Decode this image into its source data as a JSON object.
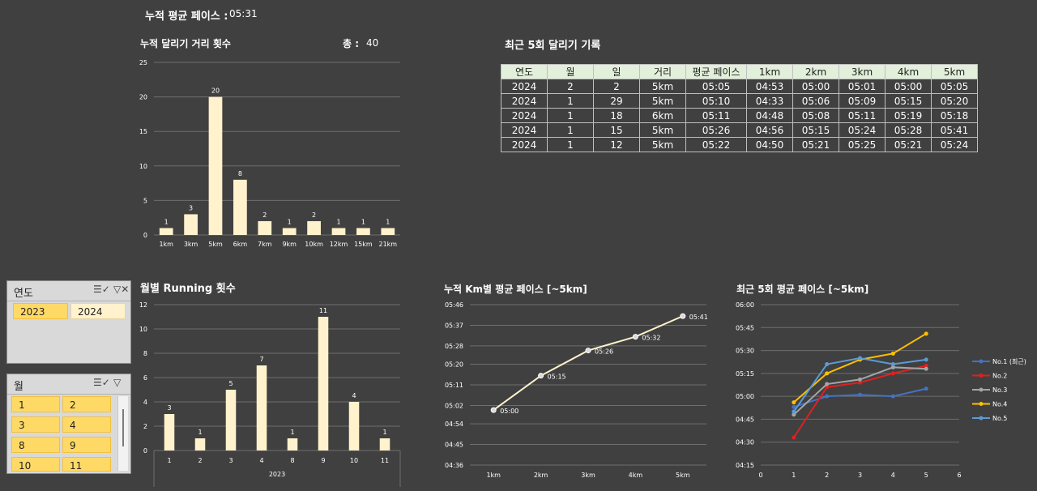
{
  "summary": {
    "pace_label": "누적 평균 페이스 :",
    "pace_value": "05:31"
  },
  "distance_chart": {
    "title": "누적 달리기 거리 횟수",
    "total_label": "총 :",
    "total_value": "40"
  },
  "recent_table": {
    "title": "최근 5회 달리기 기록",
    "headers": [
      "연도",
      "월",
      "일",
      "거리",
      "평균 페이스",
      "1km",
      "2km",
      "3km",
      "4km",
      "5km"
    ],
    "rows": [
      [
        "2024",
        "2",
        "2",
        "5km",
        "05:05",
        "04:53",
        "05:00",
        "05:01",
        "05:00",
        "05:05"
      ],
      [
        "2024",
        "1",
        "29",
        "5km",
        "05:10",
        "04:33",
        "05:06",
        "05:09",
        "05:15",
        "05:20"
      ],
      [
        "2024",
        "1",
        "18",
        "6km",
        "05:11",
        "04:48",
        "05:08",
        "05:11",
        "05:19",
        "05:18"
      ],
      [
        "2024",
        "1",
        "15",
        "5km",
        "05:26",
        "04:56",
        "05:15",
        "05:24",
        "05:28",
        "05:41"
      ],
      [
        "2024",
        "1",
        "12",
        "5km",
        "05:22",
        "04:50",
        "05:21",
        "05:25",
        "05:21",
        "05:24"
      ]
    ]
  },
  "monthly_chart": {
    "title": "월별 Running 횟수"
  },
  "km_pace_chart": {
    "title": "누적 Km별 평균 페이스 [~5km]"
  },
  "recent_pace_chart": {
    "title": "최근 5회 평균 페이스 [~5km]"
  },
  "slicer_year": {
    "title": "연도",
    "items": [
      {
        "label": "2023",
        "selected": true
      },
      {
        "label": "2024",
        "selected": false
      }
    ]
  },
  "slicer_month": {
    "title": "월",
    "items": [
      {
        "label": "1",
        "selected": true
      },
      {
        "label": "2",
        "selected": true
      },
      {
        "label": "3",
        "selected": true
      },
      {
        "label": "4",
        "selected": true
      },
      {
        "label": "8",
        "selected": true
      },
      {
        "label": "9",
        "selected": true
      },
      {
        "label": "10",
        "selected": true
      },
      {
        "label": "11",
        "selected": true
      }
    ]
  },
  "colors": {
    "bar": "#fff2cc",
    "line": "#fff2cc",
    "grid": "#6e6e6e",
    "selected": "#ffd966"
  },
  "chart_data": [
    {
      "type": "bar",
      "title": "누적 달리기 거리 횟수",
      "categories": [
        "1km",
        "3km",
        "5km",
        "6km",
        "7km",
        "9km",
        "10km",
        "12km",
        "15km",
        "21km"
      ],
      "values": [
        1,
        3,
        20,
        8,
        2,
        1,
        2,
        1,
        1,
        1
      ],
      "ylim": [
        0,
        25
      ],
      "yticks": [
        "0",
        "5",
        "10",
        "15",
        "20",
        "25"
      ],
      "grid": true
    },
    {
      "type": "bar",
      "title": "월별 Running 횟수",
      "categories": [
        "1",
        "2",
        "3",
        "4",
        "8",
        "9",
        "10",
        "11"
      ],
      "group_label": "2023",
      "values": [
        3,
        1,
        5,
        7,
        1,
        11,
        4,
        1
      ],
      "ylim": [
        0,
        12
      ],
      "yticks": [
        "0",
        "2",
        "4",
        "6",
        "8",
        "10",
        "12"
      ],
      "grid": true
    },
    {
      "type": "line",
      "title": "누적 Km별 평균 페이스 [~5km]",
      "categories": [
        "1km",
        "2km",
        "3km",
        "4km",
        "5km"
      ],
      "values": [
        "05:00",
        "05:15",
        "05:26",
        "05:32",
        "05:41"
      ],
      "yticks": [
        "04:36",
        "04:45",
        "04:54",
        "05:02",
        "05:11",
        "05:20",
        "05:28",
        "05:37",
        "05:46"
      ],
      "grid": true
    },
    {
      "type": "line",
      "title": "최근 5회 평균 페이스 [~5km]",
      "xticks": [
        "0",
        "1",
        "2",
        "3",
        "4",
        "5",
        "6"
      ],
      "yticks": [
        "04:15",
        "04:30",
        "04:45",
        "05:00",
        "05:15",
        "05:30",
        "05:45",
        "06:00"
      ],
      "legend": "right",
      "series": [
        {
          "name": "No.1 (최근)",
          "color": "#4472c4",
          "values": [
            "04:53",
            "05:00",
            "05:01",
            "05:00",
            "05:05"
          ]
        },
        {
          "name": "No.2",
          "color": "#e02020",
          "values": [
            "04:33",
            "05:06",
            "05:09",
            "05:15",
            "05:20"
          ]
        },
        {
          "name": "No.3",
          "color": "#a5a5a5",
          "values": [
            "04:48",
            "05:08",
            "05:11",
            "05:19",
            "05:18"
          ]
        },
        {
          "name": "No.4",
          "color": "#ffc000",
          "values": [
            "04:56",
            "05:15",
            "05:24",
            "05:28",
            "05:41"
          ]
        },
        {
          "name": "No.5",
          "color": "#5b9bd5",
          "values": [
            "04:50",
            "05:21",
            "05:25",
            "05:21",
            "05:24"
          ]
        }
      ],
      "grid": true
    }
  ]
}
